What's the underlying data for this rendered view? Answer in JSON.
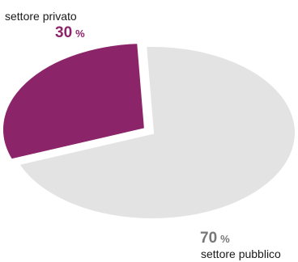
{
  "chart_data": {
    "type": "pie",
    "title": "",
    "slices": [
      {
        "label": "settore privato",
        "value": 30,
        "unit": "%",
        "color": "#8c2469",
        "exploded": true
      },
      {
        "label": "settore pubblico",
        "value": 70,
        "unit": "%",
        "color": "#e3e3e3",
        "exploded": false
      }
    ],
    "colors": {
      "private_value_text": "#8c2469",
      "public_value_text": "#777777"
    }
  }
}
